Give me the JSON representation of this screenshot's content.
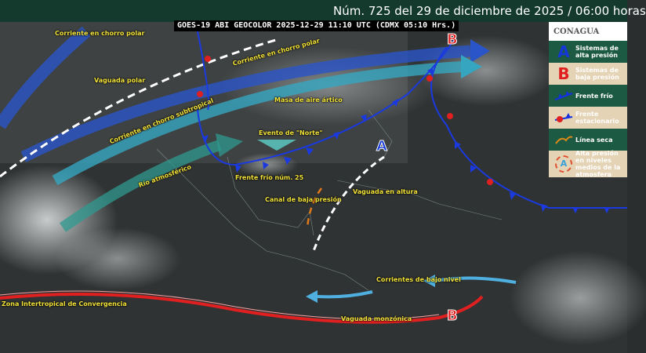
{
  "header": {
    "title": "Núm. 725 del 29 de diciembre de 2025 / 06:00 horas"
  },
  "satellite": {
    "caption": "GOES-19 ABI GEOCOLOR 2025-12-29 11:10 UTC (CDMX  05:10 Hrs.)"
  },
  "legend": {
    "logo": "CONAGUA",
    "items": [
      {
        "icon": "A",
        "label": "Sistemas de alta presión",
        "color": "#1438d8"
      },
      {
        "icon": "B",
        "label": "Sistemas de baja presión",
        "color": "#e02020"
      },
      {
        "icon": "cold-front-icon",
        "label": "Frente frío",
        "color": "#1430e0"
      },
      {
        "icon": "stationary-front-icon",
        "label": "Frente estacionario",
        "color": "#e02020"
      },
      {
        "icon": "dry-line-icon",
        "label": "Línea seca",
        "color": "#d98a1a"
      },
      {
        "icon": "A",
        "label": "Alta presión en niveles medios de la atmosfera",
        "color": "#e05030"
      }
    ]
  },
  "map_labels": {
    "polar_jet_west": "Corriente en chorro polar",
    "polar_jet": "Corriente en chorro polar",
    "polar_trough": "Vaguada polar",
    "subtropical_jet": "Corriente en chorro subtropical",
    "atmospheric_river": "Río atmosférico",
    "arctic_air": "Masa de aire ártico",
    "norte_event": "Evento de \"Norte\"",
    "cold_front": "Frente frío núm. 25",
    "low_pressure_channel": "Canal de baja presión",
    "upper_trough": "Vaguada en altura",
    "low_level_currents": "Corrientes de bajo nivel",
    "itcz": "Zona Intertropical de Convergencia",
    "monsoon_trough": "Vaguada monzónica",
    "high_A": "A",
    "low_B_north": "B",
    "low_B_south": "B"
  }
}
